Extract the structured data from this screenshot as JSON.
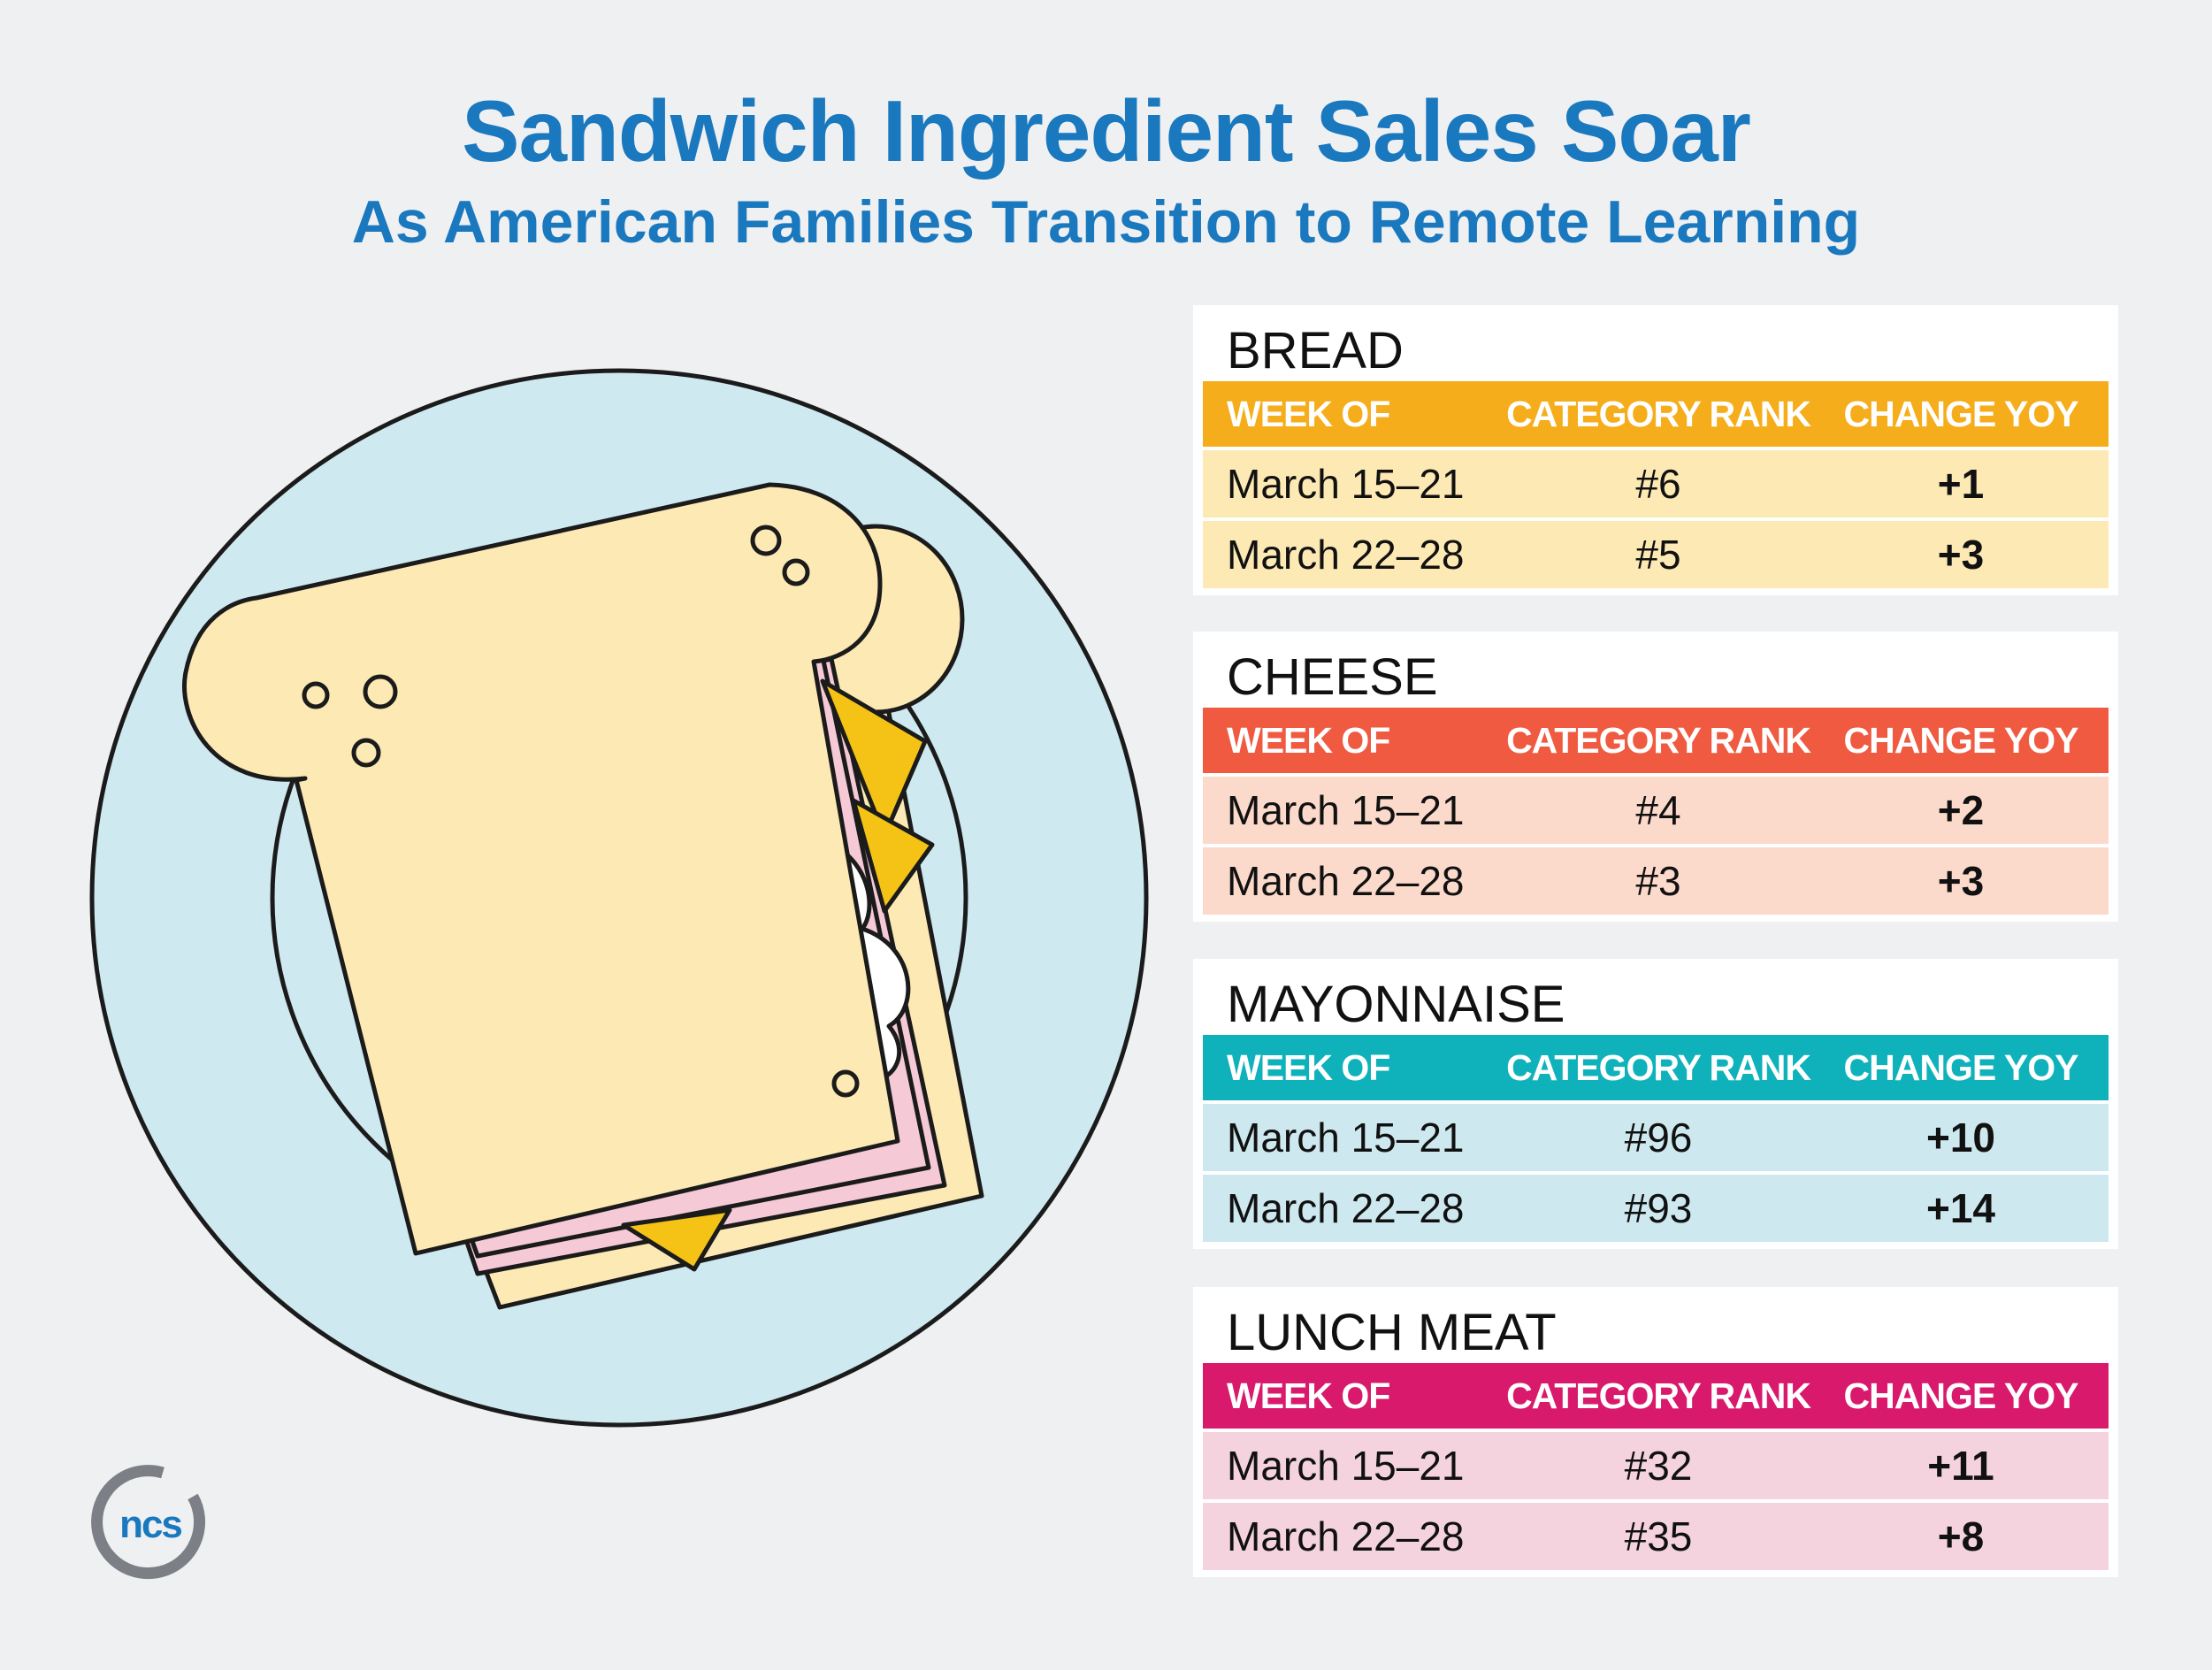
{
  "title": "Sandwich Ingredient Sales Soar",
  "subtitle": "As American Families Transition to Remote Learning",
  "logo_text": "ncs",
  "columns": [
    "WEEK OF",
    "CATEGORY RANK",
    "CHANGE YOY"
  ],
  "categories": [
    {
      "name": "BREAD",
      "header_color": "#f5ad1b",
      "row_color": "#fde9b4",
      "rows": [
        {
          "week": "March 15–21",
          "rank": "#6",
          "change": "+1"
        },
        {
          "week": "March 22–28",
          "rank": "#5",
          "change": "+3"
        }
      ]
    },
    {
      "name": "CHEESE",
      "header_color": "#ef5a40",
      "row_color": "#fbdacb",
      "rows": [
        {
          "week": "March 15–21",
          "rank": "#4",
          "change": "+2"
        },
        {
          "week": "March 22–28",
          "rank": "#3",
          "change": "+3"
        }
      ]
    },
    {
      "name": "MAYONNAISE",
      "header_color": "#0fb2bb",
      "row_color": "#cde8ee",
      "rows": [
        {
          "week": "March 15–21",
          "rank": "#96",
          "change": "+10"
        },
        {
          "week": "March 22–28",
          "rank": "#93",
          "change": "+14"
        }
      ]
    },
    {
      "name": "LUNCH MEAT",
      "header_color": "#d8196c",
      "row_color": "#f4d3de",
      "rows": [
        {
          "week": "March 15–21",
          "rank": "#32",
          "change": "+11"
        },
        {
          "week": "March 22–28",
          "rank": "#35",
          "change": "+8"
        }
      ]
    }
  ],
  "colors": {
    "title": "#1a78be",
    "background": "#eff0f2",
    "plate": "#cfe9f0",
    "bread": "#fde9b4",
    "ham": "#f5c9d6",
    "cheese": "#f5c316",
    "logo_ring": "#7c7f85",
    "logo_text": "#1a78be"
  }
}
